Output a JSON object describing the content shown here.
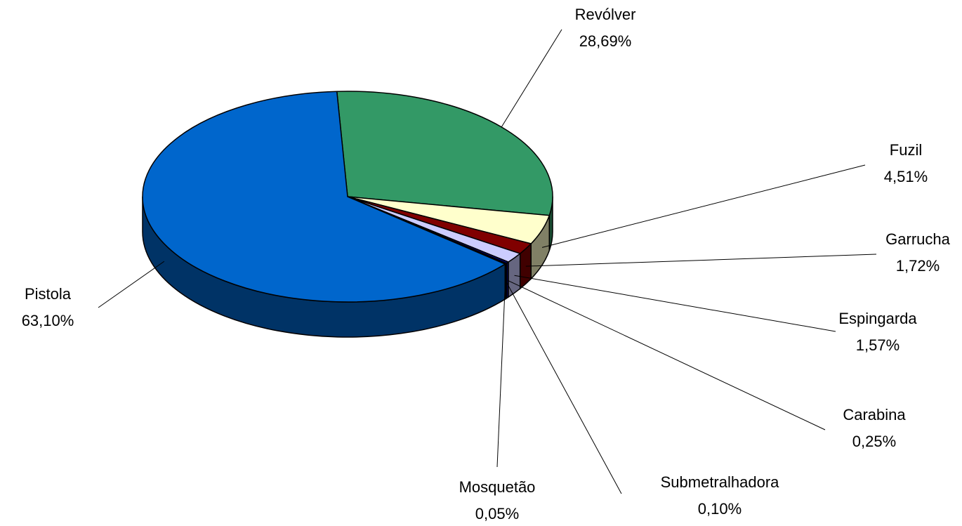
{
  "chart_data": {
    "type": "pie3d",
    "categories": [
      "Revólver",
      "Fuzil",
      "Garrucha",
      "Espingarda",
      "Carabina",
      "Submetralhadora",
      "Mosquetão",
      "Pistola"
    ],
    "values": [
      28.69,
      4.51,
      1.72,
      1.57,
      0.25,
      0.1,
      0.05,
      63.1
    ],
    "value_labels": [
      "28,69%",
      "4,51%",
      "1,72%",
      "1,57%",
      "0,25%",
      "0,10%",
      "0,05%",
      "63,10%"
    ],
    "colors": [
      "#339966",
      "#FFFFCC",
      "#800000",
      "#CCCCFF",
      "#000080",
      "#FF00FF",
      "#FFFF00",
      "#0066CC"
    ]
  }
}
